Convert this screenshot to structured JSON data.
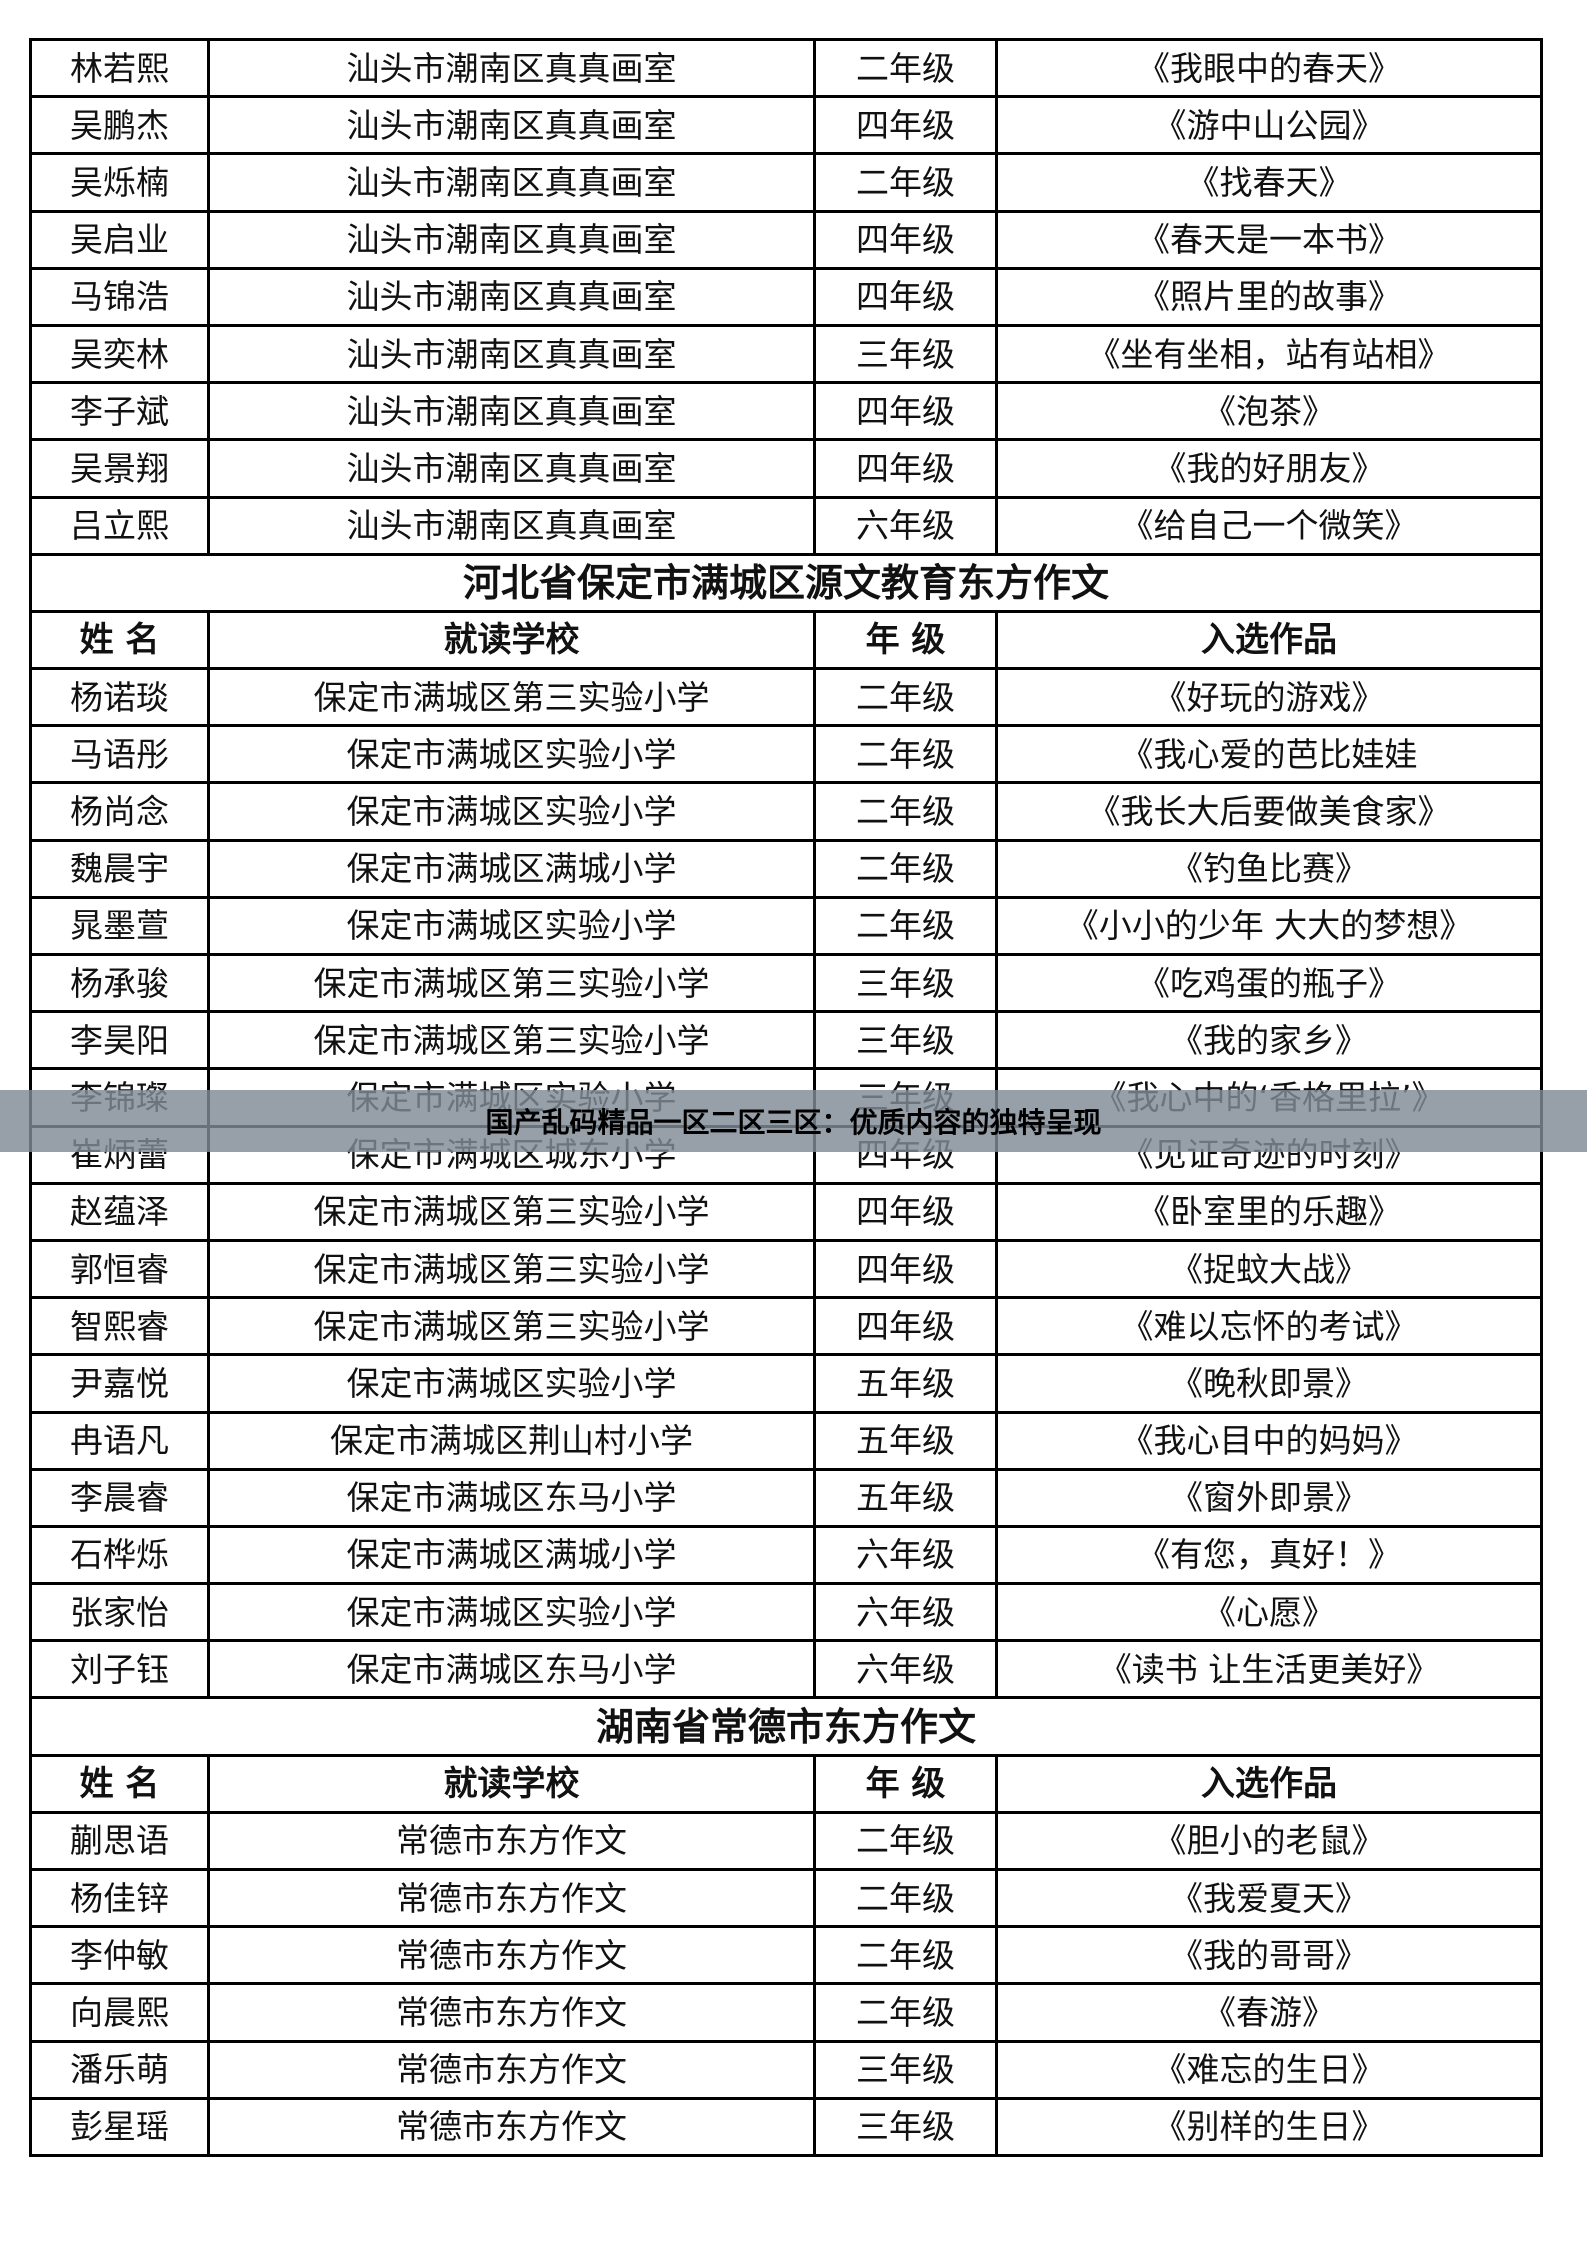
{
  "headers": {
    "name": "姓 名",
    "school": "就读学校",
    "grade": "年 级",
    "work": "入选作品"
  },
  "sections": [
    {
      "title": "",
      "show_header": false,
      "rows": [
        [
          "林若熙",
          "汕头市潮南区真真画室",
          "二年级",
          "《我眼中的春天》"
        ],
        [
          "吴鹏杰",
          "汕头市潮南区真真画室",
          "四年级",
          "《游中山公园》"
        ],
        [
          "吴烁楠",
          "汕头市潮南区真真画室",
          "二年级",
          "《找春天》"
        ],
        [
          "吴启业",
          "汕头市潮南区真真画室",
          "四年级",
          "《春天是一本书》"
        ],
        [
          "马锦浩",
          "汕头市潮南区真真画室",
          "四年级",
          "《照片里的故事》"
        ],
        [
          "吴奕林",
          "汕头市潮南区真真画室",
          "三年级",
          "《坐有坐相，站有站相》"
        ],
        [
          "李子斌",
          "汕头市潮南区真真画室",
          "四年级",
          "《泡茶》"
        ],
        [
          "吴景翔",
          "汕头市潮南区真真画室",
          "四年级",
          "《我的好朋友》"
        ],
        [
          "吕立熙",
          "汕头市潮南区真真画室",
          "六年级",
          "《给自己一个微笑》"
        ]
      ]
    },
    {
      "title": "河北省保定市满城区源文教育东方作文",
      "show_header": true,
      "rows": [
        [
          "杨诺琰",
          "保定市满城区第三实验小学",
          "二年级",
          "《好玩的游戏》"
        ],
        [
          "马语彤",
          "保定市满城区实验小学",
          "二年级",
          "《我心爱的芭比娃娃"
        ],
        [
          "杨尚念",
          "保定市满城区实验小学",
          "二年级",
          "《我长大后要做美食家》"
        ],
        [
          "魏晨宇",
          "保定市满城区满城小学",
          "二年级",
          "《钓鱼比赛》"
        ],
        [
          "晁墨萱",
          "保定市满城区实验小学",
          "二年级",
          "《小小的少年  大大的梦想》"
        ],
        [
          "杨承骏",
          "保定市满城区第三实验小学",
          "三年级",
          "《吃鸡蛋的瓶子》"
        ],
        [
          "李昊阳",
          "保定市满城区第三实验小学",
          "三年级",
          "《我的家乡》"
        ],
        [
          "李锦璨",
          "保定市满城区实验小学",
          "三年级",
          "《我心中的‘香格里拉’》"
        ],
        [
          "崔炳蕾",
          "保定市满城区城东小学",
          "四年级",
          "《见证奇迹的时刻》"
        ],
        [
          "赵蕴泽",
          "保定市满城区第三实验小学",
          "四年级",
          "《卧室里的乐趣》"
        ],
        [
          "郭恒睿",
          "保定市满城区第三实验小学",
          "四年级",
          "《捉蚊大战》"
        ],
        [
          "智熙睿",
          "保定市满城区第三实验小学",
          "四年级",
          "《难以忘怀的考试》"
        ],
        [
          "尹嘉悦",
          "保定市满城区实验小学",
          "五年级",
          "《晚秋即景》"
        ],
        [
          "冉语凡",
          "保定市满城区荆山村小学",
          "五年级",
          "《我心目中的妈妈》"
        ],
        [
          "李晨睿",
          "保定市满城区东马小学",
          "五年级",
          "《窗外即景》"
        ],
        [
          "石桦烁",
          "保定市满城区满城小学",
          "六年级",
          "《有您，真好！》"
        ],
        [
          "张家怡",
          "保定市满城区实验小学",
          "六年级",
          "《心愿》"
        ],
        [
          "刘子钰",
          "保定市满城区东马小学",
          "六年级",
          "《读书  让生活更美好》"
        ]
      ]
    },
    {
      "title": "湖南省常德市东方作文",
      "show_header": true,
      "rows": [
        [
          "蒯思语",
          "常德市东方作文",
          "二年级",
          "《胆小的老鼠》"
        ],
        [
          "杨佳锌",
          "常德市东方作文",
          "二年级",
          "《我爱夏天》"
        ],
        [
          "李仲敏",
          "常德市东方作文",
          "二年级",
          "《我的哥哥》"
        ],
        [
          "向晨熙",
          "常德市东方作文",
          "二年级",
          "《春游》"
        ],
        [
          "潘乐萌",
          "常德市东方作文",
          "三年级",
          "《难忘的生日》"
        ],
        [
          "彭星瑶",
          "常德市东方作文",
          "三年级",
          "《别样的生日》"
        ]
      ]
    }
  ],
  "banner": {
    "text": "国产乱码精品一区二区三区：优质内容的独特呈现"
  }
}
